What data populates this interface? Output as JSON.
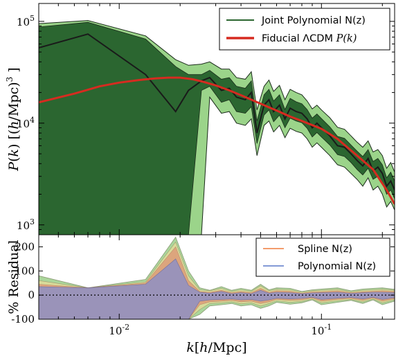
{
  "colors": {
    "joint_dark": "#2b6630",
    "joint_light": "#9bd48a",
    "fiducial": "#d62b20",
    "spline": "#ef7b3c",
    "polynomial": "#5a78c8",
    "residual_green": "#9ccf8a",
    "residual_yellow": "#e8dd9a",
    "residual_red": "#e0826a",
    "residual_blue": "#8a8fc8"
  },
  "chart_data": [
    {
      "type": "area",
      "xscale": "log",
      "yscale": "log",
      "xlim": [
        0.004,
        0.23
      ],
      "ylim": [
        800,
        150000
      ],
      "ylabel": "P(k) [(h/Mpc)^3]",
      "yticks": [
        {
          "value": 1000,
          "label": "10",
          "exp": "3"
        },
        {
          "value": 10000,
          "label": "10",
          "exp": "4"
        },
        {
          "value": 100000,
          "label": "10",
          "exp": "5"
        }
      ],
      "legend_position": "top-right",
      "legend": [
        {
          "label": "Joint Polynomial N(z)",
          "kind": "line",
          "color": "#2b6630"
        },
        {
          "label": "Fiducial ΛCDM ",
          "math": "P(k)",
          "kind": "thick-line",
          "color": "#d62b20"
        }
      ],
      "series": [
        {
          "name": "Joint Polynomial N(z)",
          "x": [
            0.004,
            0.007,
            0.0135,
            0.019,
            0.022,
            0.0255,
            0.028,
            0.032,
            0.035,
            0.038,
            0.042,
            0.045,
            0.048,
            0.052,
            0.055,
            0.058,
            0.062,
            0.066,
            0.07,
            0.075,
            0.08,
            0.085,
            0.09,
            0.095,
            0.1,
            0.11,
            0.12,
            0.13,
            0.14,
            0.15,
            0.16,
            0.17,
            0.18,
            0.19,
            0.2,
            0.21,
            0.22,
            0.23
          ],
          "mean": [
            55000,
            75000,
            30000,
            13000,
            21000,
            26000,
            28000,
            21000,
            22000,
            18000,
            17000,
            20000,
            8000,
            15000,
            17000,
            13000,
            15000,
            11000,
            14000,
            13000,
            12500,
            11000,
            9000,
            10000,
            9000,
            7500,
            6000,
            5800,
            5000,
            4300,
            3800,
            4500,
            3400,
            3700,
            3200,
            2400,
            2700,
            2200
          ],
          "inner_lower": [
            800,
            800,
            800,
            800,
            800,
            21000,
            23000,
            16000,
            17000,
            13000,
            12500,
            14500,
            6300,
            12000,
            13500,
            10300,
            12000,
            9000,
            11200,
            10500,
            10100,
            8900,
            7300,
            8100,
            7300,
            6100,
            4900,
            4700,
            4100,
            3500,
            3100,
            3600,
            2800,
            3000,
            2600,
            2000,
            2200,
            1800
          ],
          "inner_upper": [
            88000,
            98000,
            67000,
            36000,
            30000,
            30000,
            33000,
            27000,
            28000,
            23000,
            22000,
            26000,
            10500,
            19000,
            21500,
            16500,
            19000,
            13600,
            17500,
            16200,
            15500,
            13600,
            11200,
            12300,
            11100,
            9200,
            7400,
            7100,
            6100,
            5300,
            4700,
            5500,
            4200,
            4500,
            3900,
            2900,
            3300,
            2700
          ],
          "outer_lower": [
            800,
            800,
            800,
            800,
            800,
            800,
            18000,
            12500,
            13000,
            10000,
            9500,
            11000,
            4800,
            9500,
            10500,
            8200,
            9500,
            7200,
            8900,
            8300,
            8000,
            7000,
            5800,
            6400,
            5800,
            4800,
            3900,
            3700,
            3200,
            2800,
            2400,
            2900,
            2200,
            2400,
            2000,
            1500,
            1700,
            1400
          ],
          "outer_upper": [
            95000,
            102000,
            72000,
            42000,
            37000,
            38000,
            40000,
            34000,
            34000,
            28000,
            27000,
            32000,
            13500,
            23000,
            26500,
            20500,
            23500,
            17000,
            21500,
            20000,
            19000,
            16500,
            13800,
            15000,
            13500,
            11300,
            9100,
            8700,
            7500,
            6500,
            5800,
            6700,
            5200,
            5500,
            4800,
            3600,
            4100,
            3300
          ]
        },
        {
          "name": "Fiducial ΛCDM P(k)",
          "x": [
            0.004,
            0.006,
            0.008,
            0.01,
            0.0125,
            0.015,
            0.0175,
            0.02,
            0.023,
            0.026,
            0.03,
            0.035,
            0.04,
            0.05,
            0.06,
            0.07,
            0.08,
            0.1,
            0.12,
            0.15,
            0.18,
            0.21,
            0.23
          ],
          "values": [
            16000,
            19500,
            23000,
            25000,
            26500,
            27500,
            28000,
            28000,
            27000,
            25500,
            23500,
            21000,
            18800,
            15500,
            13300,
            11600,
            10500,
            8800,
            7000,
            4800,
            3500,
            2200,
            1600
          ]
        }
      ]
    },
    {
      "type": "area",
      "xscale": "log",
      "xlim": [
        0.004,
        0.23
      ],
      "ylim": [
        -100,
        250
      ],
      "xlabel": "k[h/Mpc]",
      "ylabel": "% Residual",
      "xticks": [
        {
          "value": 0.01,
          "label": "10",
          "exp": "-2"
        },
        {
          "value": 0.1,
          "label": "10",
          "exp": "-1"
        }
      ],
      "yticks": [
        -100,
        0,
        100,
        200
      ],
      "legend_position": "top-right",
      "legend": [
        {
          "label": "Spline N(z)",
          "color": "#ef7b3c"
        },
        {
          "label": "Polynomial N(z)",
          "color": "#5a78c8"
        }
      ],
      "bands": [
        {
          "name": "residual-green",
          "x": [
            0.004,
            0.007,
            0.0135,
            0.019,
            0.022,
            0.025,
            0.028,
            0.032,
            0.036,
            0.04,
            0.045,
            0.05,
            0.055,
            0.06,
            0.07,
            0.08,
            0.09,
            0.1,
            0.12,
            0.14,
            0.16,
            0.18,
            0.2,
            0.23
          ],
          "upper": [
            80,
            30,
            65,
            240,
            100,
            30,
            20,
            35,
            20,
            28,
            20,
            45,
            22,
            30,
            28,
            15,
            22,
            25,
            30,
            18,
            25,
            28,
            30,
            24
          ],
          "lower": [
            -100,
            -100,
            -100,
            -100,
            -100,
            -80,
            -45,
            -40,
            -35,
            -45,
            -40,
            -55,
            -45,
            -30,
            -38,
            -32,
            -20,
            -40,
            -30,
            -22,
            -35,
            -20,
            -40,
            -25
          ]
        },
        {
          "name": "residual-yellow",
          "x": [
            0.004,
            0.007,
            0.0135,
            0.019,
            0.022,
            0.025,
            0.028,
            0.032,
            0.036,
            0.04,
            0.045,
            0.05,
            0.055,
            0.06,
            0.07,
            0.08,
            0.09,
            0.1,
            0.12,
            0.14,
            0.16,
            0.18,
            0.2,
            0.23
          ],
          "upper": [
            60,
            30,
            55,
            220,
            80,
            22,
            18,
            28,
            15,
            22,
            15,
            38,
            18,
            24,
            22,
            12,
            18,
            20,
            24,
            14,
            20,
            22,
            24,
            20
          ],
          "lower": [
            -100,
            -100,
            -100,
            -100,
            -100,
            -60,
            -35,
            -32,
            -28,
            -36,
            -32,
            -45,
            -35,
            -24,
            -30,
            -26,
            -16,
            -32,
            -24,
            -18,
            -28,
            -16,
            -32,
            -20
          ]
        },
        {
          "name": "residual-red",
          "x": [
            0.004,
            0.007,
            0.0135,
            0.019,
            0.022,
            0.025,
            0.028,
            0.032,
            0.036,
            0.04,
            0.045,
            0.05,
            0.055,
            0.06,
            0.07,
            0.08,
            0.09,
            0.1,
            0.12,
            0.14,
            0.16,
            0.18,
            0.2,
            0.23
          ],
          "upper": [
            45,
            30,
            50,
            200,
            60,
            15,
            12,
            20,
            10,
            15,
            10,
            28,
            12,
            18,
            16,
            8,
            13,
            14,
            18,
            10,
            14,
            16,
            18,
            15
          ],
          "lower": [
            -100,
            -100,
            -100,
            -100,
            -100,
            -40,
            -28,
            -25,
            -22,
            -28,
            -25,
            -35,
            -28,
            -18,
            -22,
            -20,
            -12,
            -25,
            -18,
            -14,
            -22,
            -12,
            -25,
            -15
          ]
        },
        {
          "name": "residual-blue",
          "x": [
            0.004,
            0.007,
            0.0135,
            0.019,
            0.022,
            0.025,
            0.028,
            0.032,
            0.036,
            0.04,
            0.045,
            0.05,
            0.055,
            0.06,
            0.07,
            0.08,
            0.09,
            0.1,
            0.12,
            0.14,
            0.16,
            0.18,
            0.2,
            0.23
          ],
          "upper": [
            35,
            30,
            45,
            150,
            40,
            12,
            8,
            15,
            6,
            10,
            6,
            20,
            8,
            12,
            10,
            6,
            9,
            10,
            12,
            7,
            10,
            12,
            12,
            10
          ],
          "lower": [
            -100,
            -100,
            -100,
            -100,
            -100,
            -25,
            -20,
            -18,
            -16,
            -20,
            -18,
            -25,
            -20,
            -13,
            -16,
            -14,
            -9,
            -18,
            -13,
            -10,
            -16,
            -9,
            -18,
            -11
          ]
        }
      ],
      "reference_line": {
        "y": 0,
        "style": "dotted"
      }
    }
  ]
}
